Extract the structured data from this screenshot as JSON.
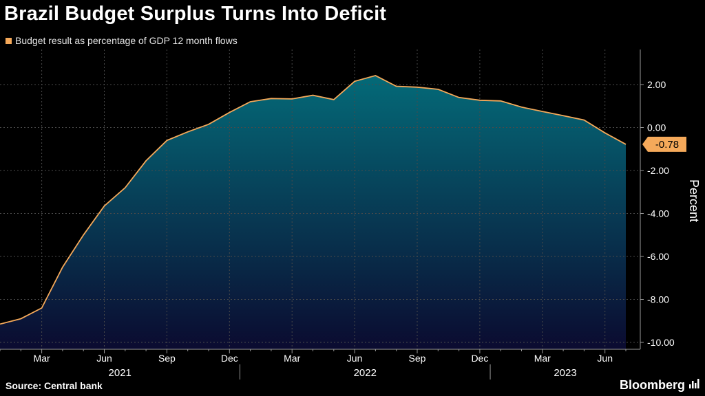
{
  "title": "Brazil Budget Surplus Turns Into Deficit",
  "source": "Source: Central bank",
  "brand": "Bloomberg",
  "brand_icon": "bloomberg-terminal-icon",
  "colors": {
    "background": "#000000",
    "line": "#f5a95a",
    "area_top": "#046a78",
    "area_bottom": "#0b0b30",
    "grid": "#4a4a4a",
    "axis": "#9a9a9a",
    "label_box": "#f5a95a"
  },
  "chart_data": {
    "type": "area",
    "title": "Brazil Budget Surplus Turns Into Deficit",
    "legend": [
      "Budget result as percentage of GDP 12 month flows"
    ],
    "legend_position": "top-left",
    "ylabel": "Percent",
    "xlabel": "",
    "y_axis_side": "right",
    "ylim": [
      -10.4,
      3.5
    ],
    "yticks": [
      2.0,
      0.0,
      -2.0,
      -4.0,
      -6.0,
      -8.0,
      -10.0
    ],
    "ytick_labels": [
      "2.00",
      "0.00",
      "-2.00",
      "-4.00",
      "-6.00",
      "-8.00",
      "-10.00"
    ],
    "grid": true,
    "x_month_ticks": [
      "Mar",
      "Jun",
      "Sep",
      "Dec",
      "Mar",
      "Jun",
      "Sep",
      "Dec",
      "Mar",
      "Jun"
    ],
    "x_year_labels": [
      "2021",
      "2022",
      "2023"
    ],
    "x": [
      "2021-01",
      "2021-02",
      "2021-03",
      "2021-04",
      "2021-05",
      "2021-06",
      "2021-07",
      "2021-08",
      "2021-09",
      "2021-10",
      "2021-11",
      "2021-12",
      "2022-01",
      "2022-02",
      "2022-03",
      "2022-04",
      "2022-05",
      "2022-06",
      "2022-07",
      "2022-08",
      "2022-09",
      "2022-10",
      "2022-11",
      "2022-12",
      "2023-01",
      "2023-02",
      "2023-03",
      "2023-04",
      "2023-05",
      "2023-06",
      "2023-07"
    ],
    "series": [
      {
        "name": "Budget result as percentage of GDP 12 month flows",
        "values": [
          -9.15,
          -8.9,
          -8.4,
          -6.5,
          -5.0,
          -3.65,
          -2.8,
          -1.55,
          -0.6,
          -0.2,
          0.15,
          0.7,
          1.2,
          1.35,
          1.33,
          1.5,
          1.3,
          2.15,
          2.42,
          1.92,
          1.88,
          1.78,
          1.4,
          1.27,
          1.24,
          0.95,
          0.75,
          0.55,
          0.35,
          -0.25,
          -0.78
        ]
      }
    ],
    "last_value_label": "-0.78"
  }
}
